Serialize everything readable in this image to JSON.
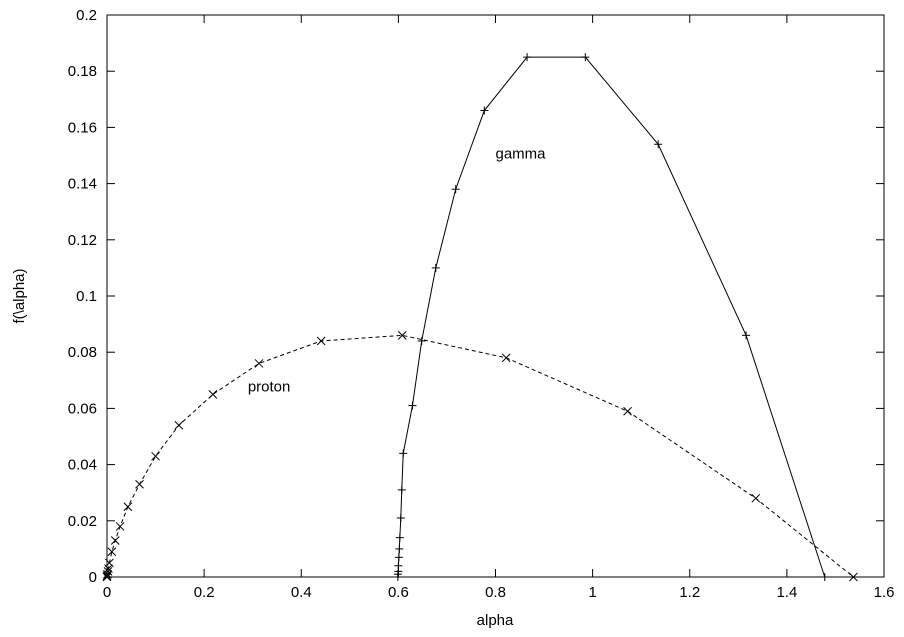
{
  "chart_data": {
    "type": "line",
    "title": "",
    "xlabel": "alpha",
    "ylabel": "f(\\alpha)",
    "xlim": [
      0,
      1.6
    ],
    "ylim": [
      0,
      0.2
    ],
    "x_ticks": [
      0,
      0.2,
      0.4,
      0.6,
      0.8,
      1,
      1.2,
      1.4,
      1.6
    ],
    "x_tick_labels": [
      "0",
      "0.2",
      "0.4",
      "0.6",
      "0.8",
      "1",
      "1.2",
      "1.4",
      "1.6"
    ],
    "y_ticks": [
      0,
      0.02,
      0.04,
      0.06,
      0.08,
      0.1,
      0.12,
      0.14,
      0.16,
      0.18,
      0.2
    ],
    "y_tick_labels": [
      "0",
      "0.02",
      "0.04",
      "0.06",
      "0.08",
      "0.1",
      "0.12",
      "0.14",
      "0.16",
      "0.18",
      "0.2"
    ],
    "grid": false,
    "legend": "none",
    "series": [
      {
        "name": "gamma",
        "line_style": "solid",
        "marker": "plus",
        "color": "#000000",
        "label_at": [
          0.8,
          0.149
        ],
        "points": [
          [
            0.599,
            0.0
          ],
          [
            0.599,
            0.001
          ],
          [
            0.6,
            0.002
          ],
          [
            0.6,
            0.004
          ],
          [
            0.601,
            0.007
          ],
          [
            0.602,
            0.01
          ],
          [
            0.603,
            0.014
          ],
          [
            0.605,
            0.021
          ],
          [
            0.607,
            0.031
          ],
          [
            0.61,
            0.044
          ],
          [
            0.629,
            0.061
          ],
          [
            0.648,
            0.084
          ],
          [
            0.677,
            0.11
          ],
          [
            0.718,
            0.138
          ],
          [
            0.777,
            0.166
          ],
          [
            0.865,
            0.185
          ],
          [
            0.985,
            0.185
          ],
          [
            1.135,
            0.154
          ],
          [
            1.316,
            0.086
          ],
          [
            1.478,
            0.0
          ]
        ]
      },
      {
        "name": "proton",
        "line_style": "dashed",
        "marker": "x",
        "color": "#000000",
        "label_at": [
          0.29,
          0.066
        ],
        "points": [
          [
            0.0,
            0.0
          ],
          [
            0.0,
            0.0005
          ],
          [
            0.001,
            0.001
          ],
          [
            0.002,
            0.002
          ],
          [
            0.003,
            0.003
          ],
          [
            0.005,
            0.005
          ],
          [
            0.01,
            0.009
          ],
          [
            0.017,
            0.013
          ],
          [
            0.027,
            0.018
          ],
          [
            0.043,
            0.025
          ],
          [
            0.067,
            0.033
          ],
          [
            0.1,
            0.043
          ],
          [
            0.148,
            0.054
          ],
          [
            0.218,
            0.065
          ],
          [
            0.313,
            0.076
          ],
          [
            0.441,
            0.084
          ],
          [
            0.608,
            0.086
          ],
          [
            0.822,
            0.078
          ],
          [
            1.072,
            0.059
          ],
          [
            1.336,
            0.028
          ],
          [
            1.537,
            0.0
          ]
        ]
      }
    ]
  }
}
